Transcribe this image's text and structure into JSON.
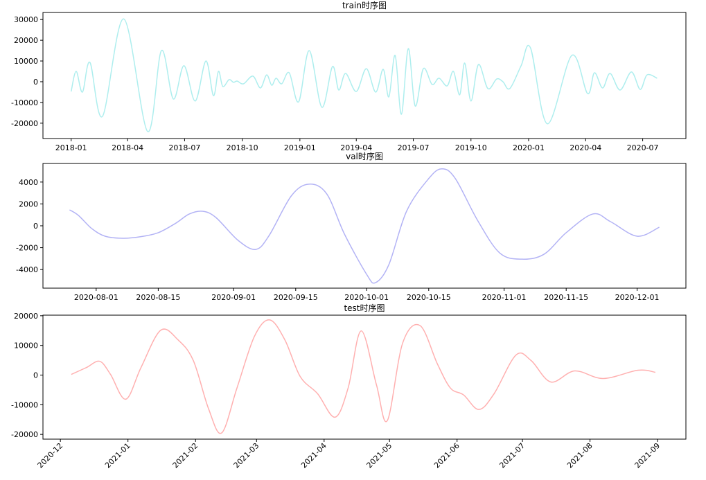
{
  "chart_data": [
    {
      "type": "line",
      "title": "train时序图",
      "color": "#aeeeee",
      "x": [
        "2018-01-01",
        "2018-01-09",
        "2018-01-19",
        "2018-01-31",
        "2018-02-20",
        "2018-03-26",
        "2018-05-03",
        "2018-05-25",
        "2018-06-13",
        "2018-06-30",
        "2018-07-18",
        "2018-08-04",
        "2018-08-16",
        "2018-08-24",
        "2018-08-31",
        "2018-09-10",
        "2018-09-17",
        "2018-09-23",
        "2018-10-03",
        "2018-10-18",
        "2018-10-30",
        "2018-11-09",
        "2018-11-17",
        "2018-11-24",
        "2018-12-03",
        "2018-12-15",
        "2018-12-30",
        "2019-01-16",
        "2019-02-05",
        "2019-02-22",
        "2019-03-04",
        "2019-03-15",
        "2019-04-01",
        "2019-04-17",
        "2019-05-02",
        "2019-05-14",
        "2019-05-23",
        "2019-06-02",
        "2019-06-12",
        "2019-06-23",
        "2019-07-04",
        "2019-07-17",
        "2019-07-31",
        "2019-08-11",
        "2019-08-24",
        "2019-09-03",
        "2019-09-13",
        "2019-09-21",
        "2019-10-01",
        "2019-10-13",
        "2019-10-28",
        "2019-11-11",
        "2019-11-21",
        "2019-12-02",
        "2019-12-20",
        "2020-01-04",
        "2020-01-31",
        "2020-03-10",
        "2020-04-04",
        "2020-04-15",
        "2020-04-28",
        "2020-05-10",
        "2020-05-26",
        "2020-06-13",
        "2020-06-27",
        "2020-07-08",
        "2020-07-24"
      ],
      "values": [
        -4700,
        5000,
        -5000,
        9300,
        -16700,
        30300,
        -24000,
        15000,
        -8300,
        7700,
        -9300,
        10000,
        -6700,
        5000,
        -2300,
        1000,
        -300,
        300,
        -1000,
        2700,
        -3000,
        3300,
        -1700,
        1700,
        -1000,
        4300,
        -9700,
        15000,
        -12300,
        7300,
        -4000,
        4000,
        -4700,
        6300,
        -5000,
        6000,
        -7300,
        12700,
        -15700,
        16000,
        -11700,
        6300,
        -1300,
        1700,
        -2000,
        5000,
        -6300,
        9000,
        -9300,
        8300,
        -3300,
        1300,
        0,
        -3300,
        7700,
        16300,
        -20300,
        12700,
        -5700,
        4300,
        -3000,
        4000,
        -4000,
        4700,
        -3700,
        3300,
        1700
      ],
      "xlim": [
        "2017-11-17",
        "2020-09-08"
      ],
      "ylim": [
        -27400,
        33400
      ],
      "xticks": [
        {
          "value": "2018-01-01",
          "label": "2018-01"
        },
        {
          "value": "2018-04-01",
          "label": "2018-04"
        },
        {
          "value": "2018-07-01",
          "label": "2018-07"
        },
        {
          "value": "2018-10-01",
          "label": "2018-10"
        },
        {
          "value": "2019-01-01",
          "label": "2019-01"
        },
        {
          "value": "2019-04-01",
          "label": "2019-04"
        },
        {
          "value": "2019-07-01",
          "label": "2019-07"
        },
        {
          "value": "2019-10-01",
          "label": "2019-10"
        },
        {
          "value": "2020-01-01",
          "label": "2020-01"
        },
        {
          "value": "2020-04-01",
          "label": "2020-04"
        },
        {
          "value": "2020-07-01",
          "label": "2020-07"
        }
      ],
      "yticks": [
        -20000,
        -10000,
        0,
        10000,
        20000,
        30000
      ]
    },
    {
      "type": "line",
      "title": "val时序图",
      "color": "#b3b3f5",
      "x": [
        "2020-07-26",
        "2020-07-28",
        "2020-07-31",
        "2020-08-03",
        "2020-08-07",
        "2020-08-11",
        "2020-08-15",
        "2020-08-19",
        "2020-08-22",
        "2020-08-25",
        "2020-08-28",
        "2020-09-02",
        "2020-09-06",
        "2020-09-09",
        "2020-09-14",
        "2020-09-18",
        "2020-09-22",
        "2020-09-26",
        "2020-10-01",
        "2020-10-03",
        "2020-10-06",
        "2020-10-10",
        "2020-10-15",
        "2020-10-18",
        "2020-10-21",
        "2020-10-26",
        "2020-10-31",
        "2020-11-05",
        "2020-11-10",
        "2020-11-15",
        "2020-11-21",
        "2020-11-25",
        "2020-12-01",
        "2020-12-06"
      ],
      "values": [
        1460,
        950,
        -250,
        -950,
        -1140,
        -1000,
        -630,
        250,
        1080,
        1330,
        760,
        -1330,
        -2160,
        -890,
        2730,
        3810,
        2920,
        -760,
        -4440,
        -5200,
        -3560,
        1330,
        4320,
        5210,
        4320,
        510,
        -2480,
        -3050,
        -2600,
        -630,
        1080,
        380,
        -950,
        -130
      ],
      "xlim": [
        "2020-07-20",
        "2020-12-12"
      ],
      "ylim": [
        -5700,
        5700
      ],
      "xticks": [
        "2020-08-01",
        "2020-08-15",
        "2020-09-01",
        "2020-09-15",
        "2020-10-01",
        "2020-10-15",
        "2020-11-01",
        "2020-11-15",
        "2020-12-01"
      ],
      "yticks": [
        -4000,
        -2000,
        0,
        2000,
        4000
      ]
    },
    {
      "type": "line",
      "title": "test时序图",
      "color": "#ffb0b0",
      "x": [
        "2020-12-06",
        "2020-12-13",
        "2020-12-19",
        "2020-12-24",
        "2020-12-31",
        "2021-01-07",
        "2021-01-16",
        "2021-01-24",
        "2021-01-31",
        "2021-02-07",
        "2021-02-13",
        "2021-02-20",
        "2021-02-28",
        "2021-03-07",
        "2021-03-14",
        "2021-03-21",
        "2021-03-29",
        "2021-04-06",
        "2021-04-12",
        "2021-04-18",
        "2021-04-25",
        "2021-04-30",
        "2021-05-07",
        "2021-05-15",
        "2021-05-23",
        "2021-05-29",
        "2021-06-04",
        "2021-06-11",
        "2021-06-18",
        "2021-06-28",
        "2021-07-05",
        "2021-07-14",
        "2021-07-25",
        "2021-08-07",
        "2021-08-23",
        "2021-08-31"
      ],
      "values": [
        230,
        2560,
        4650,
        230,
        -8140,
        2560,
        15100,
        11860,
        4880,
        -11400,
        -19500,
        -4400,
        13000,
        18600,
        11860,
        -470,
        -6280,
        -14200,
        -4400,
        14900,
        -3260,
        -15350,
        10700,
        16700,
        3720,
        -4420,
        -6700,
        -11600,
        -6280,
        6740,
        4880,
        -2330,
        1400,
        -1160,
        1630,
        930
      ],
      "xlim": [
        "2020-11-23",
        "2021-09-14"
      ],
      "ylim": [
        -21600,
        20200
      ],
      "xticks": [
        {
          "value": "2020-12-01",
          "label": "2020-12"
        },
        {
          "value": "2021-01-01",
          "label": "2021-01"
        },
        {
          "value": "2021-02-01",
          "label": "2021-02"
        },
        {
          "value": "2021-03-01",
          "label": "2021-03"
        },
        {
          "value": "2021-04-01",
          "label": "2021-04"
        },
        {
          "value": "2021-05-01",
          "label": "2021-05"
        },
        {
          "value": "2021-06-01",
          "label": "2021-06"
        },
        {
          "value": "2021-07-01",
          "label": "2021-07"
        },
        {
          "value": "2021-08-01",
          "label": "2021-08"
        },
        {
          "value": "2021-09-01",
          "label": "2021-09"
        }
      ],
      "yticks": [
        -20000,
        -10000,
        0,
        10000,
        20000
      ],
      "xtick_rotation": 45
    }
  ]
}
